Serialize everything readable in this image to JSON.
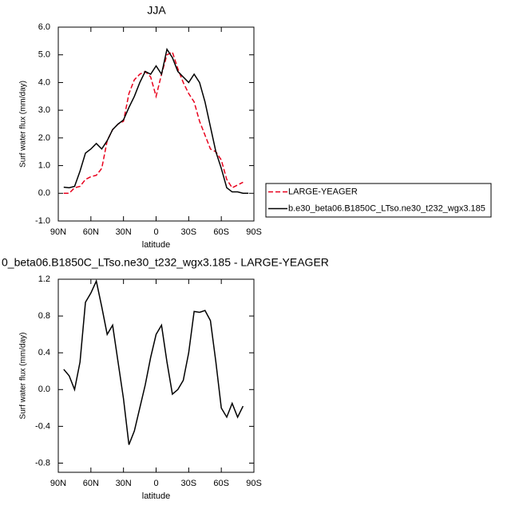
{
  "chart_data": [
    {
      "type": "line",
      "title": "JJA",
      "xlabel": "latitude",
      "ylabel": "Surf water flux (mm/day)",
      "x": [
        85,
        80,
        75,
        70,
        65,
        60,
        55,
        50,
        45,
        40,
        35,
        30,
        25,
        20,
        15,
        10,
        5,
        0,
        -5,
        -10,
        -15,
        -20,
        -25,
        -30,
        -35,
        -40,
        -45,
        -50,
        -55,
        -60,
        -65,
        -70,
        -75,
        -80,
        -85
      ],
      "series": [
        {
          "name": "LARGE-YEAGER",
          "color": "#e8001c",
          "dashed": true,
          "values": [
            0.0,
            0.0,
            0.2,
            0.25,
            0.5,
            0.6,
            0.65,
            0.9,
            1.9,
            2.3,
            2.5,
            2.6,
            3.6,
            4.1,
            4.3,
            4.4,
            4.2,
            3.5,
            4.3,
            5.0,
            5.1,
            4.5,
            4.0,
            3.6,
            3.3,
            2.6,
            2.1,
            1.6,
            1.5,
            1.2,
            0.5,
            0.2,
            0.3,
            0.4,
            null
          ]
        },
        {
          "name": "b.e30_beta06.B1850C_LTso.ne30_t232_wgx3.185",
          "color": "#000000",
          "dashed": false,
          "values": [
            0.22,
            0.2,
            0.25,
            0.8,
            1.45,
            1.6,
            1.8,
            1.6,
            1.9,
            2.3,
            2.5,
            2.65,
            3.1,
            3.5,
            4.0,
            4.4,
            4.3,
            4.6,
            4.3,
            5.2,
            4.9,
            4.4,
            4.2,
            4.0,
            4.3,
            4.0,
            3.3,
            2.4,
            1.5,
            0.9,
            0.2,
            0.05,
            0.05,
            0.0,
            0.0
          ]
        }
      ],
      "xlim": [
        90,
        -90
      ],
      "xticks": [
        {
          "value": 90,
          "label": "90N"
        },
        {
          "value": 60,
          "label": "60N"
        },
        {
          "value": 30,
          "label": "30N"
        },
        0,
        {
          "value": -30,
          "label": "30S"
        },
        {
          "value": -60,
          "label": "60S"
        },
        {
          "value": -90,
          "label": "90S"
        }
      ],
      "ylim": [
        -1,
        6
      ],
      "yticks": [
        {
          "value": -1,
          "label": "-1.0"
        },
        {
          "value": 0,
          "label": "0.0"
        },
        {
          "value": 1,
          "label": "1.0"
        },
        {
          "value": 2,
          "label": "2.0"
        },
        {
          "value": 3,
          "label": "3.0"
        },
        {
          "value": 4,
          "label": "4.0"
        },
        {
          "value": 5,
          "label": "5.0"
        },
        {
          "value": 6,
          "label": "6.0"
        }
      ],
      "legend": "right"
    },
    {
      "type": "line",
      "title": "0_beta06.B1850C_LTso.ne30_t232_wgx3.185 - LARGE-YEAGER",
      "xlabel": "latitude",
      "ylabel": "Surf water flux (mm/day)",
      "x": [
        85,
        80,
        75,
        70,
        65,
        60,
        55,
        50,
        45,
        40,
        35,
        30,
        25,
        20,
        15,
        10,
        5,
        0,
        -5,
        -10,
        -15,
        -20,
        -25,
        -30,
        -35,
        -40,
        -45,
        -50,
        -55,
        -60,
        -65,
        -70,
        -75,
        -80
      ],
      "series": [
        {
          "color": "#000000",
          "dashed": false,
          "values": [
            0.22,
            0.15,
            0.0,
            0.3,
            0.95,
            1.05,
            1.18,
            0.9,
            0.6,
            0.7,
            0.3,
            -0.1,
            -0.6,
            -0.45,
            -0.2,
            0.05,
            0.35,
            0.6,
            0.7,
            0.3,
            -0.05,
            0.0,
            0.1,
            0.4,
            0.85,
            0.84,
            0.86,
            0.75,
            0.3,
            -0.2,
            -0.3,
            -0.15,
            -0.3,
            -0.18
          ]
        }
      ],
      "xlim": [
        90,
        -90
      ],
      "xticks": [
        {
          "value": 90,
          "label": "90N"
        },
        {
          "value": 60,
          "label": "60N"
        },
        {
          "value": 30,
          "label": "30N"
        },
        0,
        {
          "value": -30,
          "label": "30S"
        },
        {
          "value": -60,
          "label": "60S"
        },
        {
          "value": -90,
          "label": "90S"
        }
      ],
      "ylim": [
        -0.9,
        1.2
      ],
      "yticks": [
        -0.8,
        -0.4,
        {
          "value": 0,
          "label": "0.0"
        },
        0.4,
        0.8,
        1.2
      ]
    }
  ]
}
